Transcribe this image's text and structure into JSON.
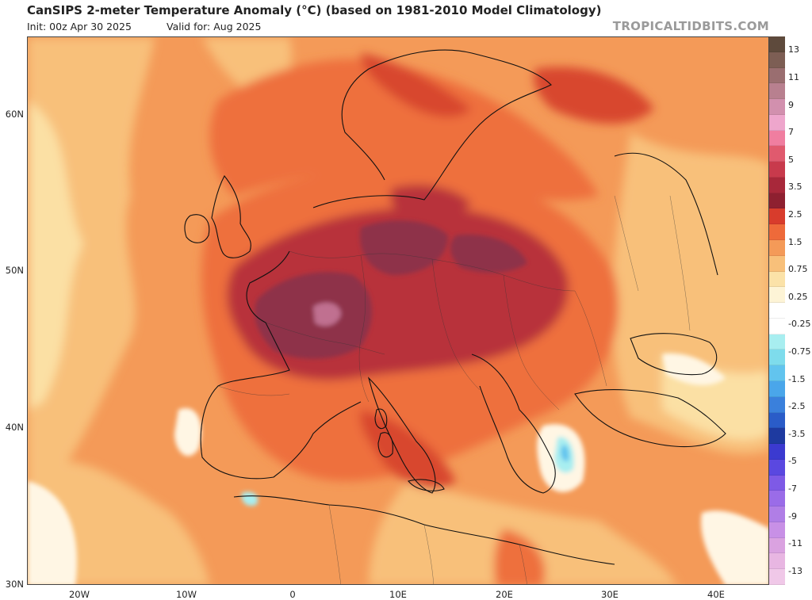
{
  "header": {
    "title": "CanSIPS 2-meter Temperature Anomaly (°C) (based on 1981-2010 Model Climatology)",
    "init": "Init: 00z Apr 30 2025",
    "valid": "Valid for: Aug 2025",
    "brand": "TROPICALTIDBITS.COM"
  },
  "axes": {
    "lat_labels": [
      "60N",
      "50N",
      "40N",
      "30N"
    ],
    "lon_labels": [
      "20W",
      "10W",
      "0",
      "10E",
      "20E",
      "30E",
      "40E"
    ]
  },
  "colorbar": {
    "labels": [
      "13",
      "11",
      "9",
      "7",
      "5",
      "3.5",
      "2.5",
      "1.5",
      "0.75",
      "0.25",
      "-0.25",
      "-0.75",
      "-1.5",
      "-2.5",
      "-3.5",
      "-5",
      "-7",
      "-9",
      "-11",
      "-13"
    ],
    "colors": [
      "#5e4a3c",
      "#7d5e54",
      "#9a6e70",
      "#b8808f",
      "#d290ae",
      "#eea6cc",
      "#f07ea0",
      "#e05a6e",
      "#c83a4c",
      "#a8283a",
      "#8e2030",
      "#d83c2c",
      "#ee6a3a",
      "#f49a58",
      "#f8c07a",
      "#fbe2a8",
      "#fdf4d6",
      "#ffffff",
      "#ffffff",
      "#a8eef0",
      "#7edcec",
      "#62c4ee",
      "#4aa6ea",
      "#3a80dc",
      "#2a5cc8",
      "#1e3aa0",
      "#3b3ad0",
      "#5a48e0",
      "#7e5ae6",
      "#9a6ce8",
      "#b07ee6",
      "#c890e6",
      "#daa2e0",
      "#e8b6e2",
      "#f0c8e8"
    ]
  },
  "map": {
    "anomaly_colors": {
      "strong": "#8e3348",
      "very_warm": "#b8303a",
      "warm": "#d8462e",
      "moderate": "#ee703c",
      "mild": "#f49a58",
      "slight": "#f8c07a",
      "faint": "#fbe0a4",
      "neutral": "#fff6e4",
      "cool": "#a8eef0",
      "cooler": "#62c4ee"
    }
  }
}
